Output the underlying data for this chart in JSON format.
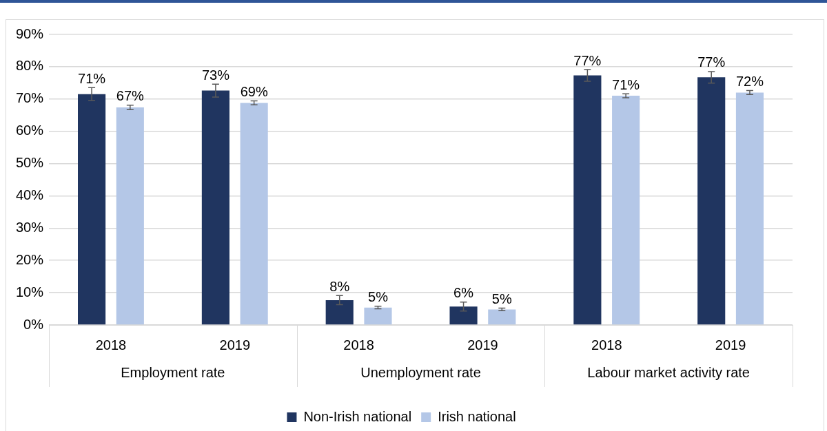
{
  "chart_data": {
    "type": "bar",
    "categories": [
      "2018",
      "2019",
      "2018",
      "2019",
      "2018",
      "2019"
    ],
    "annotations": [
      "Employment rate",
      "Unemployment rate",
      "Labour market activity rate"
    ],
    "series": [
      {
        "name": "Non-Irish national",
        "color": "#203560",
        "values": [
          71.5,
          72.6,
          7.7,
          5.7,
          77.3,
          76.7
        ],
        "errors": [
          2.0,
          2.0,
          1.4,
          1.4,
          1.8,
          1.8
        ],
        "value_labels": [
          "71%",
          "73%",
          "8%",
          "6%",
          "77%",
          "77%"
        ]
      },
      {
        "name": "Irish national",
        "color": "#b4c7e7",
        "values": [
          67.4,
          68.8,
          5.4,
          4.8,
          71.0,
          72.0
        ],
        "errors": [
          0.7,
          0.6,
          0.4,
          0.4,
          0.6,
          0.6
        ],
        "value_labels": [
          "67%",
          "69%",
          "5%",
          "5%",
          "71%",
          "72%"
        ]
      }
    ],
    "ylim": [
      0,
      90
    ],
    "yticks": [
      {
        "value": 0,
        "label": "0%"
      },
      {
        "value": 10,
        "label": "10%"
      },
      {
        "value": 20,
        "label": "20%"
      },
      {
        "value": 30,
        "label": "30%"
      },
      {
        "value": 40,
        "label": "40%"
      },
      {
        "value": 50,
        "label": "50%"
      },
      {
        "value": 60,
        "label": "60%"
      },
      {
        "value": 70,
        "label": "70%"
      },
      {
        "value": 80,
        "label": "80%"
      },
      {
        "value": 90,
        "label": "90%"
      }
    ],
    "grid": "y",
    "legend": "bottom"
  }
}
